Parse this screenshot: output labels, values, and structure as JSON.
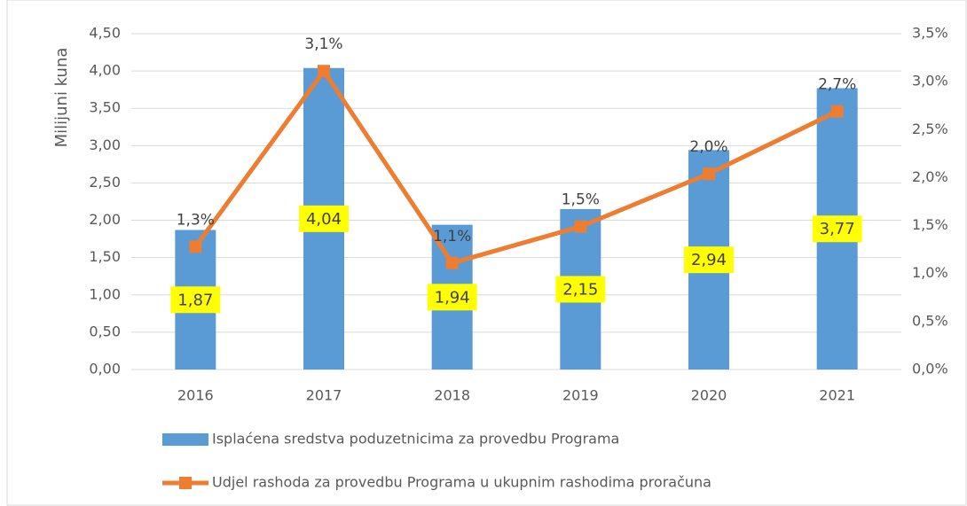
{
  "chart_data": {
    "type": "bar_line",
    "y_label": "Milijuni kuna",
    "categories": [
      "2016",
      "2017",
      "2018",
      "2019",
      "2020",
      "2021"
    ],
    "series": [
      {
        "name": "Isplaćena sredstva poduzetnicima za provedbu Programa",
        "type": "bar",
        "color": "#5b9bd5",
        "values": [
          1.87,
          4.04,
          1.94,
          2.15,
          2.94,
          3.77
        ],
        "value_labels": [
          "1,87",
          "4,04",
          "1,94",
          "2,15",
          "2,94",
          "3,77"
        ]
      },
      {
        "name": "Udjel rashoda za provedbu Programa u ukupnim rashodima proračuna",
        "type": "line",
        "axis": "y2",
        "color": "#ed7d31",
        "values": [
          1.28,
          3.11,
          1.11,
          1.49,
          2.04,
          2.69
        ],
        "value_labels": [
          "1,3%",
          "3,1%",
          "1,1%",
          "1,5%",
          "2,0%",
          "2,7%"
        ]
      }
    ],
    "ylim": [
      0,
      4.5
    ],
    "yticks": [
      {
        "value": 0,
        "label": "0,00"
      },
      {
        "value": 0.5,
        "label": "0,50"
      },
      {
        "value": 1,
        "label": "1,00"
      },
      {
        "value": 1.5,
        "label": "1,50"
      },
      {
        "value": 2,
        "label": "2,00"
      },
      {
        "value": 2.5,
        "label": "2,50"
      },
      {
        "value": 3,
        "label": "3,00"
      },
      {
        "value": 3.5,
        "label": "3,50"
      },
      {
        "value": 4,
        "label": "4,00"
      },
      {
        "value": 4.5,
        "label": "4,50"
      }
    ],
    "y2lim": [
      0,
      3.5
    ],
    "y2ticks": [
      {
        "value": 0,
        "label": "0,0%"
      },
      {
        "value": 0.5,
        "label": "0,5%"
      },
      {
        "value": 1,
        "label": "1,0%"
      },
      {
        "value": 1.5,
        "label": "1,5%"
      },
      {
        "value": 2,
        "label": "2,0%"
      },
      {
        "value": 2.5,
        "label": "2,5%"
      },
      {
        "value": 3,
        "label": "3,0%"
      },
      {
        "value": 3.5,
        "label": "3,5%"
      }
    ],
    "grid": true,
    "legend": "bottom"
  }
}
